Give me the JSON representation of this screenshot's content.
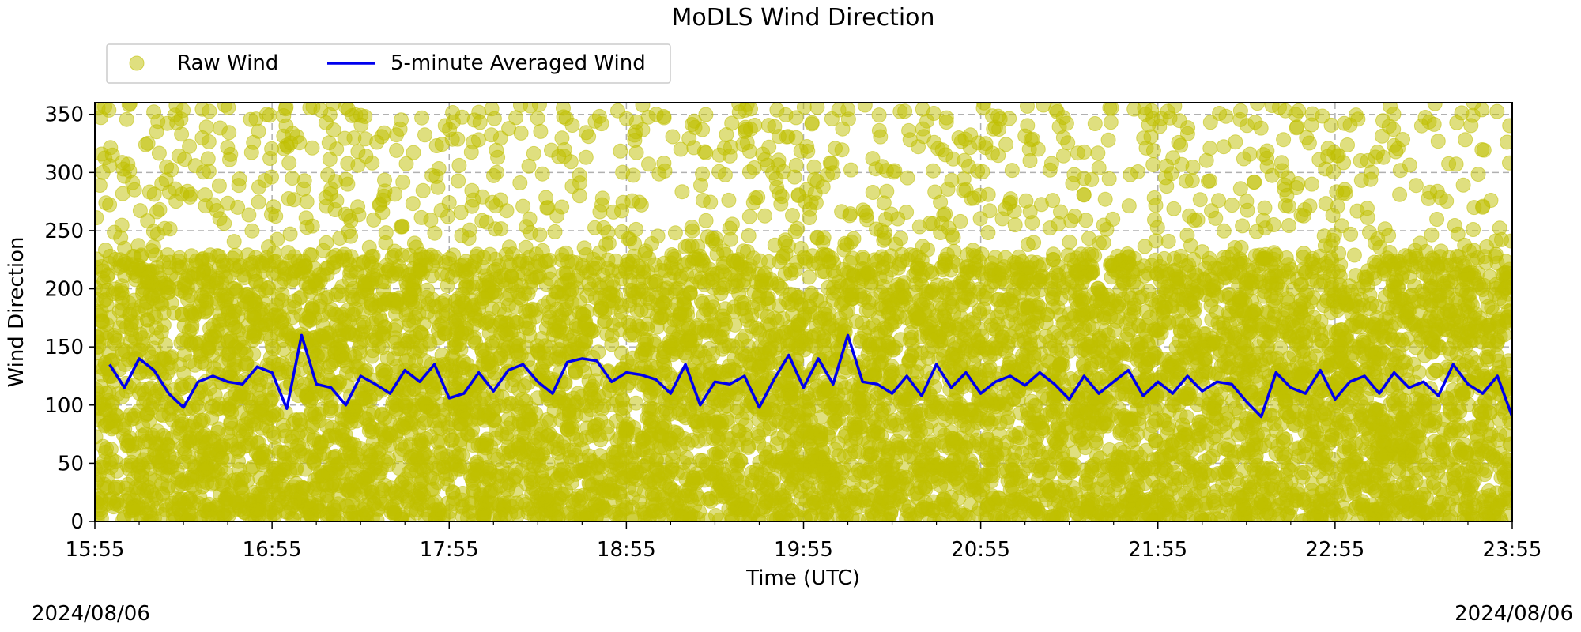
{
  "chart_data": {
    "type": "scatter",
    "title": "MoDLS Wind Direction",
    "xlabel": "Time (UTC)",
    "ylabel": "Wind Direction",
    "x_ticks": [
      "15:55",
      "16:55",
      "17:55",
      "18:55",
      "19:55",
      "20:55",
      "21:55",
      "22:55",
      "23:55"
    ],
    "x_range": [
      "15:55",
      "23:55"
    ],
    "y_ticks": [
      0,
      50,
      100,
      150,
      200,
      250,
      300,
      350
    ],
    "ylim": [
      0,
      360
    ],
    "grid": true,
    "legend_position": "top-left, above plot",
    "date_left": "2024/08/06",
    "date_right": "2024/08/06",
    "series": [
      {
        "name": "Raw Wind",
        "type": "scatter",
        "color": "#bfbf00",
        "description_range": [
          0,
          360
        ],
        "dense_band": [
          20,
          230
        ]
      },
      {
        "name": "5-minute Averaged Wind",
        "type": "line",
        "color": "#0000ee",
        "x": [
          "16:00",
          "16:05",
          "16:10",
          "16:15",
          "16:20",
          "16:25",
          "16:30",
          "16:35",
          "16:40",
          "16:45",
          "16:50",
          "16:55",
          "17:00",
          "17:05",
          "17:10",
          "17:15",
          "17:20",
          "17:25",
          "17:30",
          "17:35",
          "17:40",
          "17:45",
          "17:50",
          "17:55",
          "18:00",
          "18:05",
          "18:10",
          "18:15",
          "18:20",
          "18:25",
          "18:30",
          "18:35",
          "18:40",
          "18:45",
          "18:50",
          "18:55",
          "19:00",
          "19:05",
          "19:10",
          "19:15",
          "19:20",
          "19:25",
          "19:30",
          "19:35",
          "19:40",
          "19:45",
          "19:50",
          "19:55",
          "20:00",
          "20:05",
          "20:10",
          "20:15",
          "20:20",
          "20:25",
          "20:30",
          "20:35",
          "20:40",
          "20:45",
          "20:50",
          "20:55",
          "21:00",
          "21:05",
          "21:10",
          "21:15",
          "21:20",
          "21:25",
          "21:30",
          "21:35",
          "21:40",
          "21:45",
          "21:50",
          "21:55",
          "22:00",
          "22:05",
          "22:10",
          "22:15",
          "22:20",
          "22:25",
          "22:30",
          "22:35",
          "22:40",
          "22:45",
          "22:50",
          "22:55",
          "23:00",
          "23:05",
          "23:10",
          "23:15",
          "23:20",
          "23:25",
          "23:30",
          "23:35",
          "23:40",
          "23:45",
          "23:50",
          "23:55"
        ],
        "values": [
          135,
          115,
          140,
          130,
          110,
          98,
          120,
          125,
          120,
          118,
          133,
          128,
          97,
          160,
          118,
          115,
          100,
          125,
          118,
          110,
          130,
          120,
          135,
          106,
          110,
          128,
          112,
          130,
          135,
          120,
          110,
          137,
          140,
          138,
          120,
          128,
          126,
          122,
          110,
          135,
          100,
          120,
          118,
          125,
          98,
          122,
          143,
          115,
          140,
          118,
          160,
          120,
          118,
          110,
          125,
          108,
          135,
          115,
          128,
          110,
          120,
          125,
          117,
          128,
          118,
          105,
          125,
          110,
          120,
          130,
          108,
          120,
          110,
          125,
          112,
          120,
          118,
          103,
          90,
          128,
          115,
          110,
          130,
          105,
          120,
          125,
          110,
          128,
          115,
          120,
          108,
          135,
          118,
          110,
          125,
          90
        ]
      }
    ]
  }
}
